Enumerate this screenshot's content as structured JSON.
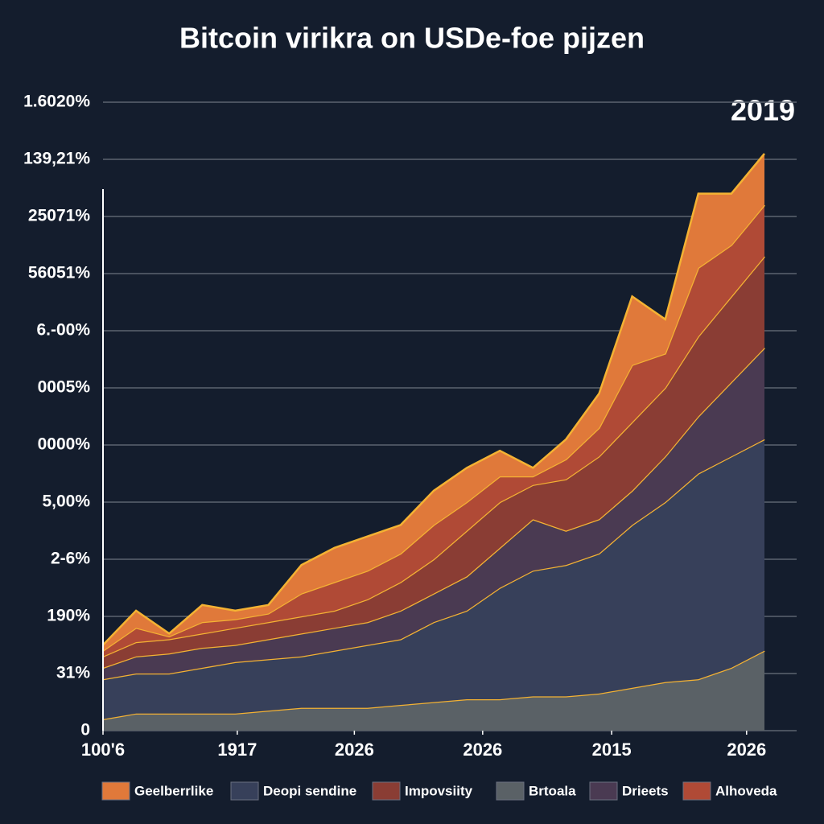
{
  "chart_data": {
    "type": "stacked_area",
    "title": "Bitcoin virikra on USDe-foe pijzen",
    "annotation": "2019",
    "x": [
      0,
      5,
      10,
      15,
      20,
      25,
      30,
      35,
      40,
      45,
      50,
      55,
      60,
      65,
      70,
      75,
      80,
      85,
      90,
      95,
      100
    ],
    "xlim": [
      0,
      100
    ],
    "xticks": [
      {
        "value": 0,
        "label": "100'6"
      },
      {
        "value": 20.3,
        "label": "1917"
      },
      {
        "value": 38,
        "label": "2026"
      },
      {
        "value": 57.4,
        "label": "2026"
      },
      {
        "value": 76.9,
        "label": "2015"
      },
      {
        "value": 97.3,
        "label": "2026"
      }
    ],
    "ylim": [
      0,
      11
    ],
    "yticks": [
      0,
      {
        "value": 1,
        "label": "31%"
      },
      {
        "value": 2,
        "label": "190%"
      },
      {
        "value": 3,
        "label": "2-6%"
      },
      {
        "value": 4,
        "label": "5,00%"
      },
      {
        "value": 5,
        "label": "0000%"
      },
      {
        "value": 6,
        "label": "0005%"
      },
      {
        "value": 7,
        "label": "6.-00%"
      },
      {
        "value": 8,
        "label": "56051%"
      },
      {
        "value": 9,
        "label": "25071%"
      },
      {
        "value": 10,
        "label": "139,21%"
      },
      {
        "value": 11,
        "label": "1.6020%"
      }
    ],
    "grid": true,
    "series": [
      {
        "name": "Brtoala",
        "color": "#5a6166",
        "values": [
          0.2,
          0.3,
          0.3,
          0.3,
          0.3,
          0.35,
          0.4,
          0.4,
          0.4,
          0.45,
          0.5,
          0.55,
          0.55,
          0.6,
          0.6,
          0.65,
          0.75,
          0.85,
          0.9,
          1.1,
          1.4
        ]
      },
      {
        "name": "Deopi sendine",
        "color": "#37405a",
        "values": [
          0.7,
          0.7,
          0.7,
          0.8,
          0.9,
          0.9,
          0.9,
          1.0,
          1.1,
          1.15,
          1.4,
          1.55,
          1.95,
          2.2,
          2.3,
          2.45,
          2.85,
          3.15,
          3.6,
          3.7,
          3.7
        ]
      },
      {
        "name": "Drieets",
        "color": "#4a3a52",
        "values": [
          0.2,
          0.3,
          0.35,
          0.35,
          0.3,
          0.35,
          0.4,
          0.4,
          0.4,
          0.5,
          0.5,
          0.6,
          0.7,
          0.9,
          0.6,
          0.6,
          0.6,
          0.8,
          1.0,
          1.3,
          1.6
        ]
      },
      {
        "name": "Impovsiity",
        "color": "#8a3d34",
        "values": [
          0.2,
          0.25,
          0.25,
          0.25,
          0.3,
          0.3,
          0.3,
          0.3,
          0.4,
          0.5,
          0.6,
          0.8,
          0.8,
          0.6,
          0.9,
          1.1,
          1.2,
          1.2,
          1.4,
          1.5,
          1.6
        ]
      },
      {
        "name": "Alhoveda",
        "color": "#b04a36",
        "values": [
          0.1,
          0.25,
          0.05,
          0.2,
          0.15,
          0.15,
          0.4,
          0.5,
          0.5,
          0.5,
          0.6,
          0.5,
          0.45,
          0.15,
          0.35,
          0.5,
          1.0,
          0.6,
          1.2,
          0.9,
          0.9
        ]
      },
      {
        "name": "Geelberrlike",
        "color": "#e0793a",
        "values": [
          0.1,
          0.3,
          0.05,
          0.3,
          0.15,
          0.15,
          0.5,
          0.6,
          0.6,
          0.5,
          0.6,
          0.6,
          0.45,
          0.15,
          0.35,
          0.6,
          1.2,
          0.6,
          1.3,
          0.9,
          0.9
        ]
      }
    ]
  }
}
